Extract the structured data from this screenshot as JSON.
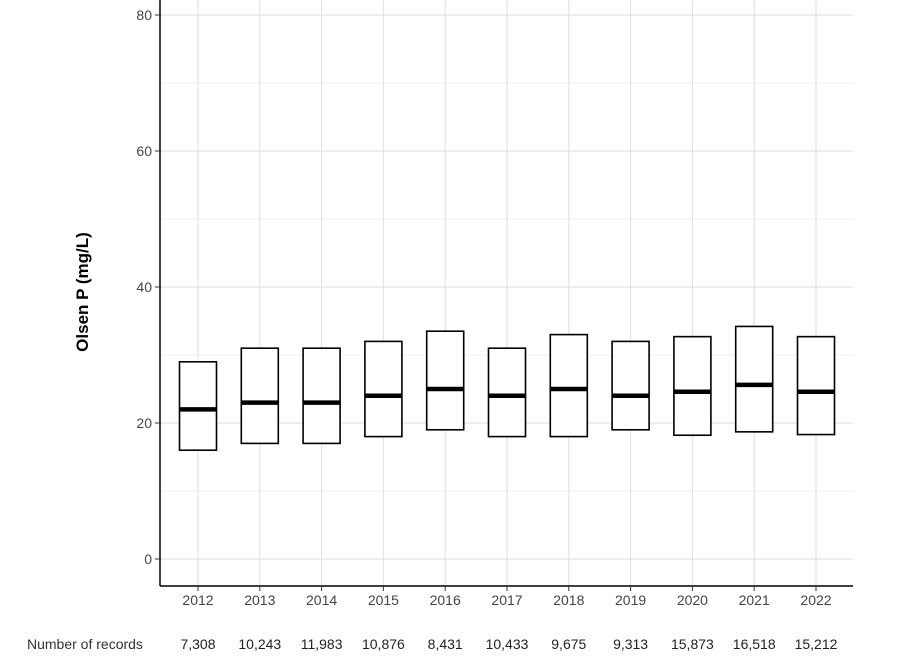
{
  "chart_data": {
    "type": "box",
    "xlabel": "",
    "ylabel": "Olsen P (mg/L)",
    "ylim": [
      0,
      84
    ],
    "yticks": [
      0,
      20,
      40,
      60,
      80
    ],
    "categories": [
      "2012",
      "2013",
      "2014",
      "2015",
      "2016",
      "2017",
      "2018",
      "2019",
      "2020",
      "2021",
      "2022"
    ],
    "boxes": [
      {
        "q1": 16,
        "median": 22,
        "q3": 29
      },
      {
        "q1": 17,
        "median": 23,
        "q3": 31
      },
      {
        "q1": 17,
        "median": 23,
        "q3": 31
      },
      {
        "q1": 18,
        "median": 24,
        "q3": 32
      },
      {
        "q1": 19,
        "median": 25,
        "q3": 33.5
      },
      {
        "q1": 18,
        "median": 24,
        "q3": 31
      },
      {
        "q1": 18,
        "median": 25,
        "q3": 33
      },
      {
        "q1": 19,
        "median": 24,
        "q3": 32
      },
      {
        "q1": 18.2,
        "median": 24.6,
        "q3": 32.7
      },
      {
        "q1": 18.7,
        "median": 25.6,
        "q3": 34.2
      },
      {
        "q1": 18.3,
        "median": 24.6,
        "q3": 32.7
      }
    ],
    "grid": true,
    "records_label": "Number of records",
    "records": [
      "7,308",
      "10,243",
      "11,983",
      "10,876",
      "8,431",
      "10,433",
      "9,675",
      "9,313",
      "15,873",
      "16,518",
      "15,212"
    ]
  }
}
